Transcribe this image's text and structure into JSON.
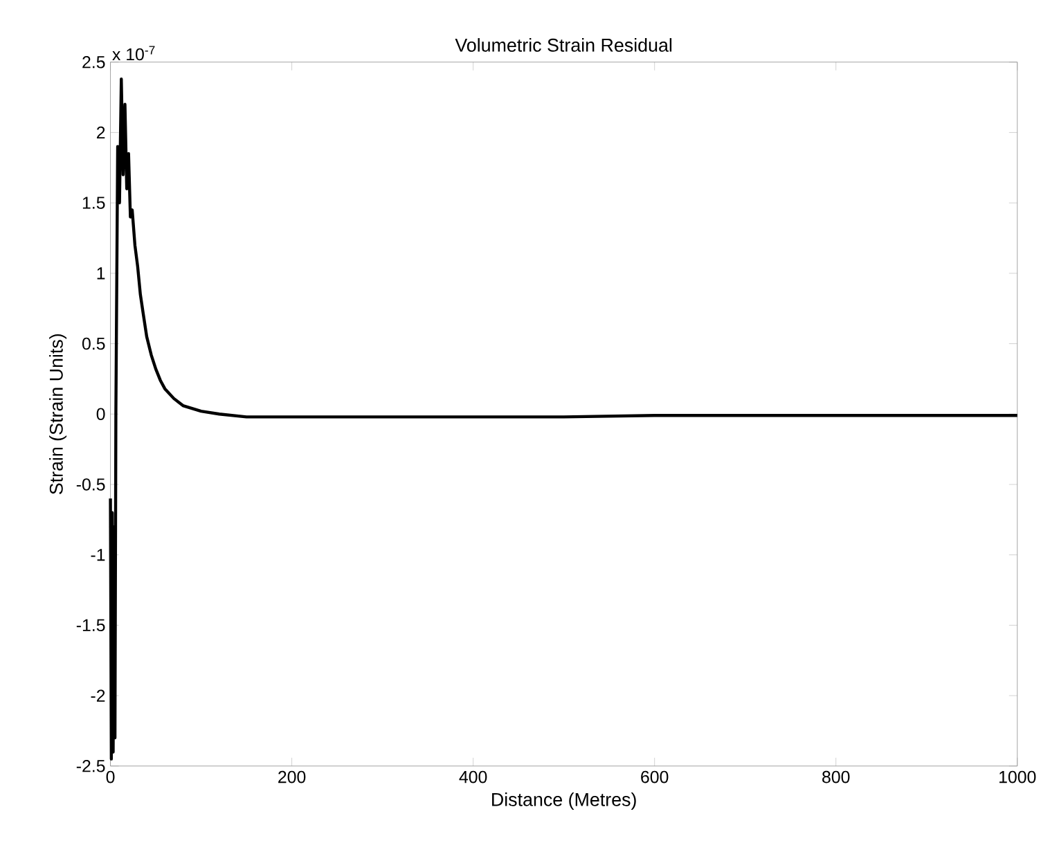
{
  "chart_data": {
    "type": "line",
    "title": "Volumetric Strain Residual",
    "xlabel": "Distance (Metres)",
    "ylabel": "Strain (Strain Units)",
    "annotations": [
      "x 10$^{-7}$"
    ],
    "x": [
      0,
      1,
      2,
      3,
      4,
      5,
      6,
      8,
      10,
      12,
      14,
      16,
      18,
      20,
      22,
      24,
      27,
      30,
      33,
      36,
      40,
      45,
      50,
      55,
      60,
      70,
      80,
      90,
      100,
      120,
      150,
      200,
      300,
      400,
      500,
      600,
      700,
      800,
      900,
      1000
    ],
    "series": [
      {
        "color": "#000000",
        "values": [
          -0.6,
          -2.45,
          -0.7,
          -2.4,
          -0.8,
          -2.3,
          0.0,
          1.9,
          1.5,
          2.38,
          1.7,
          2.2,
          1.6,
          1.85,
          1.4,
          1.45,
          1.2,
          1.05,
          0.85,
          0.72,
          0.55,
          0.42,
          0.32,
          0.24,
          0.18,
          0.11,
          0.06,
          0.04,
          0.02,
          0.0,
          -0.02,
          -0.02,
          -0.02,
          -0.02,
          -0.02,
          -0.01,
          -0.01,
          -0.01,
          -0.01,
          -0.01
        ]
      }
    ],
    "xlim": [
      0,
      1000
    ],
    "ylim": [
      -2.5,
      2.5
    ],
    "xticks": [
      0,
      200,
      400,
      600,
      800,
      1000
    ],
    "yticks": [
      -2.5,
      -2,
      -1.5,
      -1,
      -0.5,
      0,
      0.5,
      1,
      1.5,
      2,
      2.5
    ],
    "grid": false,
    "marker": "none",
    "line_style": "solid"
  }
}
